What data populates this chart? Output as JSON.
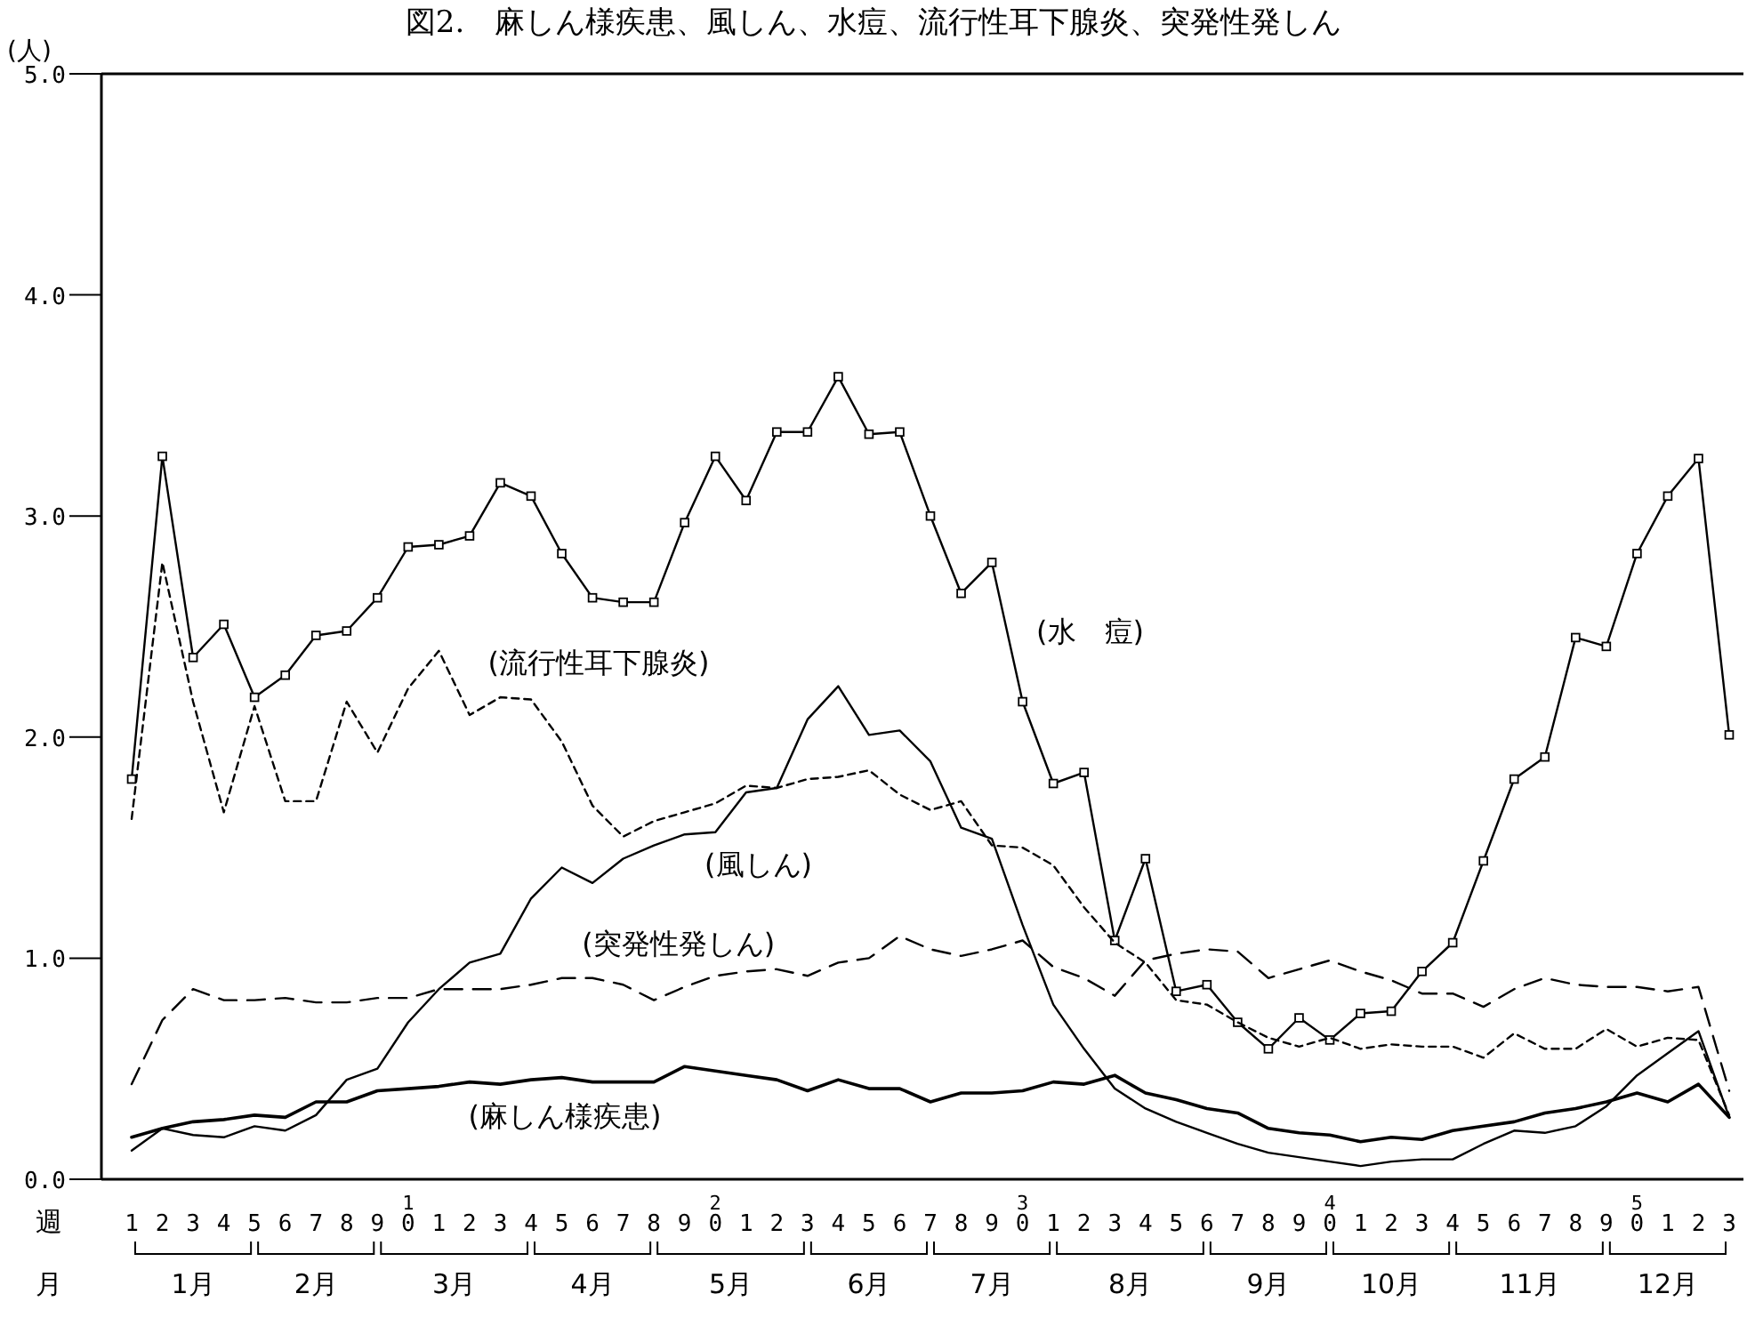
{
  "chart_data": {
    "type": "line",
    "title": "図2.　麻しん様疾患、風しん、水痘、流行性耳下腺炎、突発性発しん",
    "ylabel": "(人)",
    "xlabel": "週",
    "categories": [
      "1",
      "2",
      "3",
      "4",
      "5",
      "6",
      "7",
      "8",
      "9",
      "10",
      "1",
      "2",
      "3",
      "4",
      "5",
      "6",
      "7",
      "8",
      "9",
      "20",
      "1",
      "2",
      "3",
      "4",
      "5",
      "6",
      "7",
      "8",
      "9",
      "30",
      "1",
      "2",
      "3",
      "4",
      "5",
      "6",
      "7",
      "8",
      "9",
      "40",
      "1",
      "2",
      "3",
      "4",
      "5",
      "6",
      "7",
      "8",
      "9",
      "50",
      "1",
      "2",
      "3"
    ],
    "ylim": [
      0,
      5
    ],
    "yticks": [
      {
        "value": 0,
        "label": "0.0"
      },
      {
        "value": 1,
        "label": "1.0"
      },
      {
        "value": 2,
        "label": "2.0"
      },
      {
        "value": 3,
        "label": "3.0"
      },
      {
        "value": 4,
        "label": "4.0"
      },
      {
        "value": 5,
        "label": "5.0"
      }
    ],
    "grid": false,
    "legend": false,
    "annotations": [
      "月",
      "1月",
      "2月",
      "3月",
      "4月",
      "5月",
      "6月",
      "7月",
      "8月",
      "9月",
      "10月",
      "11月",
      "12月"
    ],
    "series": [
      {
        "name": "(水　痘)",
        "color": "#000000",
        "marker": "square",
        "line_style": "solid",
        "values": [
          1.81,
          3.27,
          2.36,
          2.51,
          2.18,
          2.28,
          2.46,
          2.48,
          2.63,
          2.86,
          2.87,
          2.91,
          3.15,
          3.09,
          2.83,
          2.63,
          2.61,
          2.61,
          2.97,
          3.27,
          3.07,
          3.38,
          3.38,
          3.63,
          3.37,
          3.38,
          3.0,
          2.65,
          2.79,
          2.16,
          1.79,
          1.84,
          1.08,
          1.45,
          0.85,
          0.88,
          0.71,
          0.59,
          0.73,
          0.63,
          0.75,
          0.76,
          0.94,
          1.07,
          1.44,
          1.81,
          1.91,
          2.45,
          2.41,
          2.83,
          3.09,
          3.26,
          2.01
        ]
      },
      {
        "name": "(流行性耳下腺炎)",
        "color": "#000000",
        "marker": "none",
        "line_style": "dotted",
        "values": [
          1.63,
          2.79,
          2.16,
          1.66,
          2.14,
          1.71,
          1.71,
          2.16,
          1.93,
          2.22,
          2.39,
          2.1,
          2.18,
          2.17,
          1.98,
          1.69,
          1.55,
          1.62,
          1.66,
          1.7,
          1.78,
          1.77,
          1.81,
          1.82,
          1.85,
          1.74,
          1.67,
          1.71,
          1.51,
          1.5,
          1.42,
          1.23,
          1.07,
          0.98,
          0.81,
          0.79,
          0.71,
          0.64,
          0.6,
          0.64,
          0.59,
          0.61,
          0.6,
          0.6,
          0.55,
          0.66,
          0.59,
          0.59,
          0.68,
          0.6,
          0.64,
          0.63,
          0.29
        ]
      },
      {
        "name": "(風しん)",
        "color": "#000000",
        "marker": "none",
        "line_style": "solid",
        "values": [
          0.13,
          0.23,
          0.2,
          0.19,
          0.24,
          0.22,
          0.29,
          0.45,
          0.5,
          0.71,
          0.86,
          0.98,
          1.02,
          1.27,
          1.41,
          1.34,
          1.45,
          1.51,
          1.56,
          1.57,
          1.75,
          1.77,
          2.08,
          2.23,
          2.01,
          2.03,
          1.89,
          1.59,
          1.54,
          1.15,
          0.79,
          0.59,
          0.41,
          0.32,
          0.26,
          0.21,
          0.16,
          0.12,
          0.1,
          0.08,
          0.06,
          0.08,
          0.09,
          0.09,
          0.16,
          0.22,
          0.21,
          0.24,
          0.33,
          0.47,
          0.57,
          0.67,
          0.28
        ]
      },
      {
        "name": "(突発性発しん)",
        "color": "#000000",
        "marker": "none",
        "line_style": "dashed",
        "values": [
          0.43,
          0.72,
          0.86,
          0.81,
          0.81,
          0.82,
          0.8,
          0.8,
          0.82,
          0.82,
          0.86,
          0.86,
          0.86,
          0.88,
          0.91,
          0.91,
          0.88,
          0.81,
          0.87,
          0.92,
          0.94,
          0.95,
          0.92,
          0.98,
          1.0,
          1.1,
          1.04,
          1.01,
          1.04,
          1.08,
          0.96,
          0.91,
          0.83,
          0.99,
          1.02,
          1.04,
          1.03,
          0.91,
          0.95,
          0.99,
          0.94,
          0.9,
          0.84,
          0.84,
          0.78,
          0.86,
          0.91,
          0.88,
          0.87,
          0.87,
          0.85,
          0.87,
          0.4
        ]
      },
      {
        "name": "(麻しん様疾患)",
        "color": "#000000",
        "marker": "none",
        "line_style": "solid",
        "values": [
          0.19,
          0.23,
          0.26,
          0.27,
          0.29,
          0.28,
          0.35,
          0.35,
          0.4,
          0.41,
          0.42,
          0.44,
          0.43,
          0.45,
          0.46,
          0.44,
          0.44,
          0.44,
          0.51,
          0.49,
          0.47,
          0.45,
          0.4,
          0.45,
          0.41,
          0.41,
          0.35,
          0.39,
          0.39,
          0.4,
          0.44,
          0.43,
          0.47,
          0.39,
          0.36,
          0.32,
          0.3,
          0.23,
          0.21,
          0.2,
          0.17,
          0.19,
          0.18,
          0.22,
          0.24,
          0.26,
          0.3,
          0.32,
          0.35,
          0.39,
          0.35,
          0.43,
          0.28
        ]
      }
    ]
  }
}
